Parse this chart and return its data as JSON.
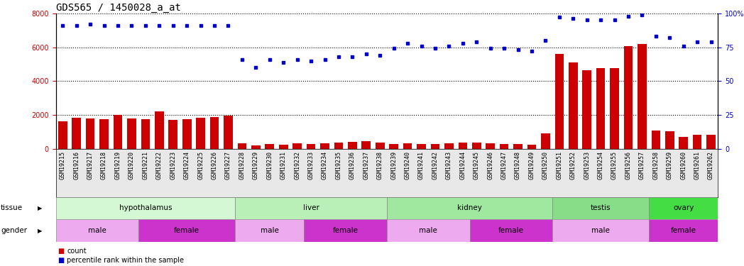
{
  "title": "GDS565 / 1450028_a_at",
  "samples": [
    "GSM19215",
    "GSM19216",
    "GSM19217",
    "GSM19218",
    "GSM19219",
    "GSM19220",
    "GSM19221",
    "GSM19222",
    "GSM19223",
    "GSM19224",
    "GSM19225",
    "GSM19226",
    "GSM19227",
    "GSM19228",
    "GSM19229",
    "GSM19230",
    "GSM19231",
    "GSM19232",
    "GSM19233",
    "GSM19234",
    "GSM19235",
    "GSM19236",
    "GSM19237",
    "GSM19238",
    "GSM19239",
    "GSM19240",
    "GSM19241",
    "GSM19242",
    "GSM19243",
    "GSM19244",
    "GSM19245",
    "GSM19246",
    "GSM19247",
    "GSM19248",
    "GSM19249",
    "GSM19250",
    "GSM19251",
    "GSM19252",
    "GSM19253",
    "GSM19254",
    "GSM19255",
    "GSM19256",
    "GSM19257",
    "GSM19258",
    "GSM19259",
    "GSM19260",
    "GSM19261",
    "GSM19262"
  ],
  "counts": [
    1650,
    1850,
    1800,
    1750,
    2000,
    1800,
    1750,
    2200,
    1700,
    1750,
    1850,
    1900,
    1950,
    350,
    200,
    300,
    270,
    350,
    310,
    350,
    380,
    400,
    450,
    380,
    280,
    350,
    300,
    280,
    330,
    360,
    380,
    320,
    310,
    280,
    260,
    900,
    5600,
    5100,
    4650,
    4750,
    4750,
    6050,
    6200,
    1100,
    1050,
    720,
    850,
    850
  ],
  "percentiles": [
    91,
    91,
    92,
    91,
    91,
    91,
    91,
    91,
    91,
    91,
    91,
    91,
    91,
    66,
    60,
    66,
    64,
    66,
    65,
    66,
    68,
    68,
    70,
    69,
    74,
    78,
    76,
    74,
    76,
    78,
    79,
    74,
    74,
    73,
    72,
    80,
    97,
    96,
    95,
    95,
    95,
    98,
    99,
    83,
    82,
    76,
    79,
    79
  ],
  "tissue_groups": [
    {
      "label": "hypothalamus",
      "start": 0,
      "end": 12,
      "color": "#ccffcc"
    },
    {
      "label": "liver",
      "start": 13,
      "end": 23,
      "color": "#aaffaa"
    },
    {
      "label": "kidney",
      "start": 24,
      "end": 35,
      "color": "#99ee99"
    },
    {
      "label": "testis",
      "start": 36,
      "end": 42,
      "color": "#88dd88"
    },
    {
      "label": "ovary",
      "start": 43,
      "end": 47,
      "color": "#55ee55"
    }
  ],
  "gender_groups": [
    {
      "label": "male",
      "start": 0,
      "end": 5,
      "color": "#ee99ee"
    },
    {
      "label": "female",
      "start": 6,
      "end": 12,
      "color": "#dd44dd"
    },
    {
      "label": "male",
      "start": 13,
      "end": 17,
      "color": "#ee99ee"
    },
    {
      "label": "female",
      "start": 18,
      "end": 23,
      "color": "#dd44dd"
    },
    {
      "label": "male",
      "start": 24,
      "end": 29,
      "color": "#ee99ee"
    },
    {
      "label": "female",
      "start": 30,
      "end": 35,
      "color": "#dd44dd"
    },
    {
      "label": "male",
      "start": 36,
      "end": 42,
      "color": "#ee99ee"
    },
    {
      "label": "female",
      "start": 43,
      "end": 47,
      "color": "#dd44dd"
    }
  ],
  "bar_color": "#cc0000",
  "dot_color": "#0000cc",
  "ylim": [
    0,
    8000
  ],
  "yticks_left": [
    0,
    2000,
    4000,
    6000,
    8000
  ],
  "yticks_right_labels": [
    "0",
    "25",
    "50",
    "75",
    "100%"
  ],
  "yticks_right_values": [
    0,
    25,
    50,
    75,
    100
  ],
  "background_color": "#ffffff",
  "title_fontsize": 10,
  "tick_fontsize": 6,
  "label_fontsize": 7.5,
  "tissue_fontsize": 7.5,
  "gender_fontsize": 7.5
}
